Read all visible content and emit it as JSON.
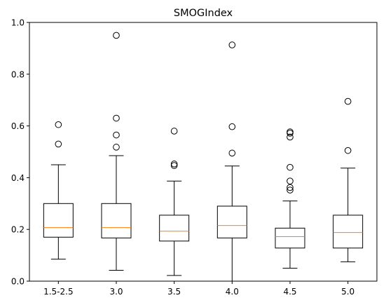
{
  "chart_data": {
    "type": "box",
    "title": "SMOGIndex",
    "xlabel": "",
    "ylabel": "",
    "ylim": [
      0,
      1.0
    ],
    "yticks": [
      "0.0",
      "0.2",
      "0.4",
      "0.6",
      "0.8",
      "1.0"
    ],
    "grid": false,
    "colors": {
      "box": "#000000",
      "median": "#ff7f0e",
      "outlier": "#000000"
    },
    "categories": [
      "1.5-2.5",
      "3.0",
      "3.5",
      "4.0",
      "4.5",
      "5.0"
    ],
    "boxes": [
      {
        "category": "1.5-2.5",
        "whisker_low": 0.085,
        "q1": 0.17,
        "median": 0.207,
        "q3": 0.3,
        "whisker_high": 0.45,
        "outliers": [
          0.53,
          0.605
        ]
      },
      {
        "category": "3.0",
        "whisker_low": 0.042,
        "q1": 0.167,
        "median": 0.207,
        "q3": 0.3,
        "whisker_high": 0.485,
        "outliers": [
          0.518,
          0.565,
          0.63,
          0.95
        ]
      },
      {
        "category": "3.5",
        "whisker_low": 0.022,
        "q1": 0.155,
        "median": 0.193,
        "q3": 0.255,
        "whisker_high": 0.387,
        "outliers": [
          0.447,
          0.453,
          0.58
        ]
      },
      {
        "category": "4.0",
        "whisker_low": 0.0,
        "q1": 0.167,
        "median": 0.215,
        "q3": 0.29,
        "whisker_high": 0.445,
        "outliers": [
          0.495,
          0.597,
          0.913
        ]
      },
      {
        "category": "4.5",
        "whisker_low": 0.05,
        "q1": 0.128,
        "median": 0.172,
        "q3": 0.205,
        "whisker_high": 0.31,
        "outliers": [
          0.352,
          0.362,
          0.387,
          0.44,
          0.557,
          0.572,
          0.577
        ]
      },
      {
        "category": "5.0",
        "whisker_low": 0.075,
        "q1": 0.128,
        "median": 0.188,
        "q3": 0.255,
        "whisker_high": 0.437,
        "outliers": [
          0.505,
          0.695
        ]
      }
    ]
  }
}
